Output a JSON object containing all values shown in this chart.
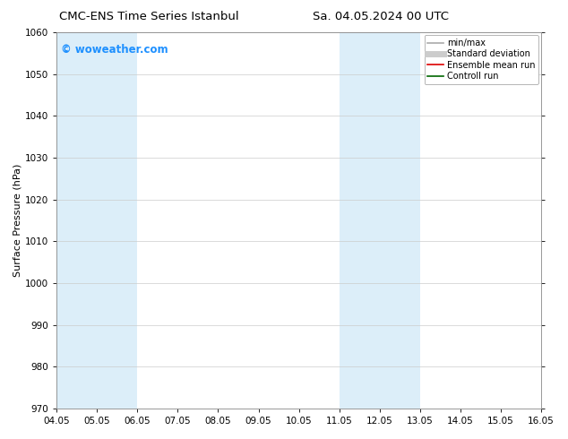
{
  "title_left": "CMC-ENS Time Series Istanbul",
  "title_right": "Sa. 04.05.2024 00 UTC",
  "ylabel": "Surface Pressure (hPa)",
  "xlim": [
    0,
    12
  ],
  "ylim": [
    970,
    1060
  ],
  "yticks": [
    970,
    980,
    990,
    1000,
    1010,
    1020,
    1030,
    1040,
    1050,
    1060
  ],
  "xtick_labels": [
    "04.05",
    "05.05",
    "06.05",
    "07.05",
    "08.05",
    "09.05",
    "10.05",
    "11.05",
    "12.05",
    "13.05",
    "14.05",
    "15.05",
    "16.05"
  ],
  "xtick_positions": [
    0,
    1,
    2,
    3,
    4,
    5,
    6,
    7,
    8,
    9,
    10,
    11,
    12
  ],
  "shaded_bands": [
    {
      "x_start": 0,
      "x_end": 2,
      "color": "#dceef9"
    },
    {
      "x_start": 7,
      "x_end": 9,
      "color": "#dceef9"
    }
  ],
  "watermark_text": "© woweather.com",
  "watermark_color": "#1e90ff",
  "background_color": "#ffffff",
  "plot_bg_color": "#ffffff",
  "grid_color": "#cccccc",
  "legend_items": [
    {
      "label": "min/max",
      "color": "#aaaaaa",
      "lw": 1.2
    },
    {
      "label": "Standard deviation",
      "color": "#cccccc",
      "lw": 5
    },
    {
      "label": "Ensemble mean run",
      "color": "#dd0000",
      "lw": 1.2
    },
    {
      "label": "Controll run",
      "color": "#006600",
      "lw": 1.2
    }
  ],
  "title_fontsize": 9.5,
  "tick_fontsize": 7.5,
  "ylabel_fontsize": 8,
  "watermark_fontsize": 8.5,
  "legend_fontsize": 7
}
